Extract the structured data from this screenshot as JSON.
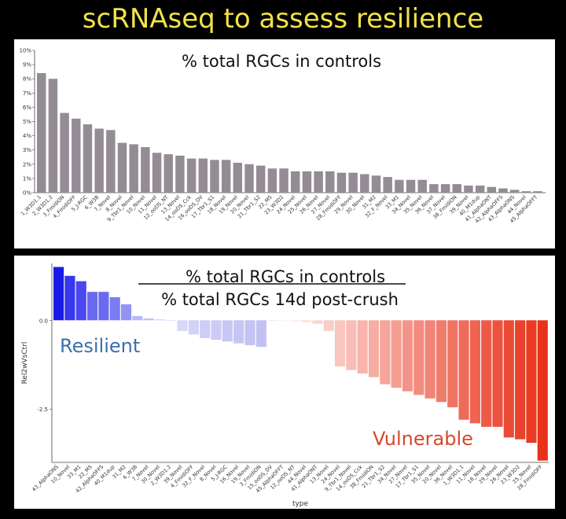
{
  "slide_title": "scRNAseq to assess resilience",
  "chart_data": [
    {
      "type": "bar",
      "title": "% total RGCs in controls",
      "xlabel": "",
      "ylabel": "",
      "ylim": [
        0,
        10
      ],
      "yticks": [
        "0%",
        "1%",
        "2%",
        "3%",
        "4%",
        "5%",
        "6%",
        "7%",
        "8%",
        "9%",
        "10%"
      ],
      "bar_color": "#948c94",
      "categories": [
        "1_W3D1.1",
        "2_W3D1.2",
        "3_FmidiON",
        "4_FmidiOFF",
        "5_J-RGC",
        "6_W3B",
        "7_Novel",
        "8_Novel",
        "9_Tbr1_Novel",
        "10_Novel",
        "11_Novel",
        "12_ooDS_NT",
        "13_Novel",
        "14_ooDS_Cck",
        "16_ooDS_DV",
        "17_Tbr1_S1",
        "18_Novel",
        "19_Novel",
        "20_Novel",
        "21_Tbr1_S2",
        "22_M5",
        "23_W3D2",
        "24_Novel",
        "25_Novel",
        "26_Novel",
        "27_Novel",
        "28_FmidiOFF",
        "29_Novel",
        "30_Novel",
        "31_M2",
        "32_F_Novel",
        "33_M1",
        "34_Novel",
        "35_Novel",
        "36_Novel",
        "37_Novel",
        "38_FmidiON",
        "39_Novel",
        "40_M1dup",
        "41_AlphaONT",
        "42_AlphaOFFS",
        "43_AlphaONS",
        "44_Novel",
        "45_AlphaOFFT"
      ],
      "values": [
        8.4,
        8.0,
        5.6,
        5.2,
        4.8,
        4.5,
        4.4,
        3.5,
        3.4,
        3.2,
        2.8,
        2.7,
        2.6,
        2.4,
        2.4,
        2.3,
        2.3,
        2.1,
        2.0,
        1.9,
        1.7,
        1.7,
        1.5,
        1.5,
        1.5,
        1.5,
        1.4,
        1.4,
        1.3,
        1.2,
        1.1,
        0.9,
        0.9,
        0.9,
        0.6,
        0.6,
        0.6,
        0.5,
        0.5,
        0.4,
        0.3,
        0.2,
        0.1,
        0.1
      ]
    },
    {
      "type": "bar",
      "title": "% total RGCs in controls",
      "title_denominator": "% total RGCs  14d post-crush",
      "xlabel": "type",
      "ylabel": "Rel2wVsCtrl",
      "ylim": [
        -4.0,
        1.6
      ],
      "ytick_values": [
        0,
        -2.5
      ],
      "ytick_labels": [
        "0.0",
        "-2.5"
      ],
      "color_positive": "#1a1ae8",
      "color_negative": "#e8321a",
      "annotations": {
        "resilient": "Resilient",
        "vulnerable": "Vulnerable"
      },
      "annotation_colors": {
        "resilient": "#3a6fb0",
        "vulnerable": "#d9472b"
      },
      "categories": [
        "43_AlphaONS",
        "10_Novel",
        "33_M1",
        "22_M5",
        "42_AlphaOFFS",
        "40_M1dup",
        "31_M2",
        "6_W3B",
        "7_Novel",
        "30_Novel",
        "2_W3D1.2",
        "39_Novel",
        "4_FmidiOFF",
        "32_F_Novel",
        "8_Novel",
        "5_J-RGC",
        "16_Novel",
        "19_Novel",
        "3_FmidiON",
        "15_ooDS_DV",
        "45_AlphaOFFT",
        "12_ooDS_NT",
        "44_Novel",
        "41_AlphaONT",
        "13_Novel",
        "24_Novel",
        "9_Tbr1_Novel",
        "14_ooDS_Cck",
        "38_FmidiON",
        "21_Tbr1_S2",
        "34_Novel",
        "27_Novel",
        "17_Tbr1_S1",
        "35_Novel",
        "20_Novel",
        "36_Novel",
        "1_W3D1.1",
        "11_Novel",
        "18_Novel",
        "29_Novel",
        "26_Novel",
        "23_W3D2",
        "25_Novel",
        "28_FmidiOFF"
      ],
      "values": [
        1.5,
        1.25,
        1.1,
        0.8,
        0.8,
        0.65,
        0.45,
        0.12,
        0.05,
        0.02,
        0.0,
        -0.3,
        -0.4,
        -0.5,
        -0.55,
        -0.6,
        -0.65,
        -0.7,
        -0.75,
        -0.02,
        -0.02,
        -0.03,
        -0.05,
        -0.1,
        -0.3,
        -1.3,
        -1.4,
        -1.5,
        -1.6,
        -1.8,
        -1.9,
        -2.0,
        -2.1,
        -2.2,
        -2.3,
        -2.45,
        -2.8,
        -2.9,
        -3.0,
        -3.0,
        -3.3,
        -3.35,
        -3.45,
        -3.95
      ]
    }
  ]
}
